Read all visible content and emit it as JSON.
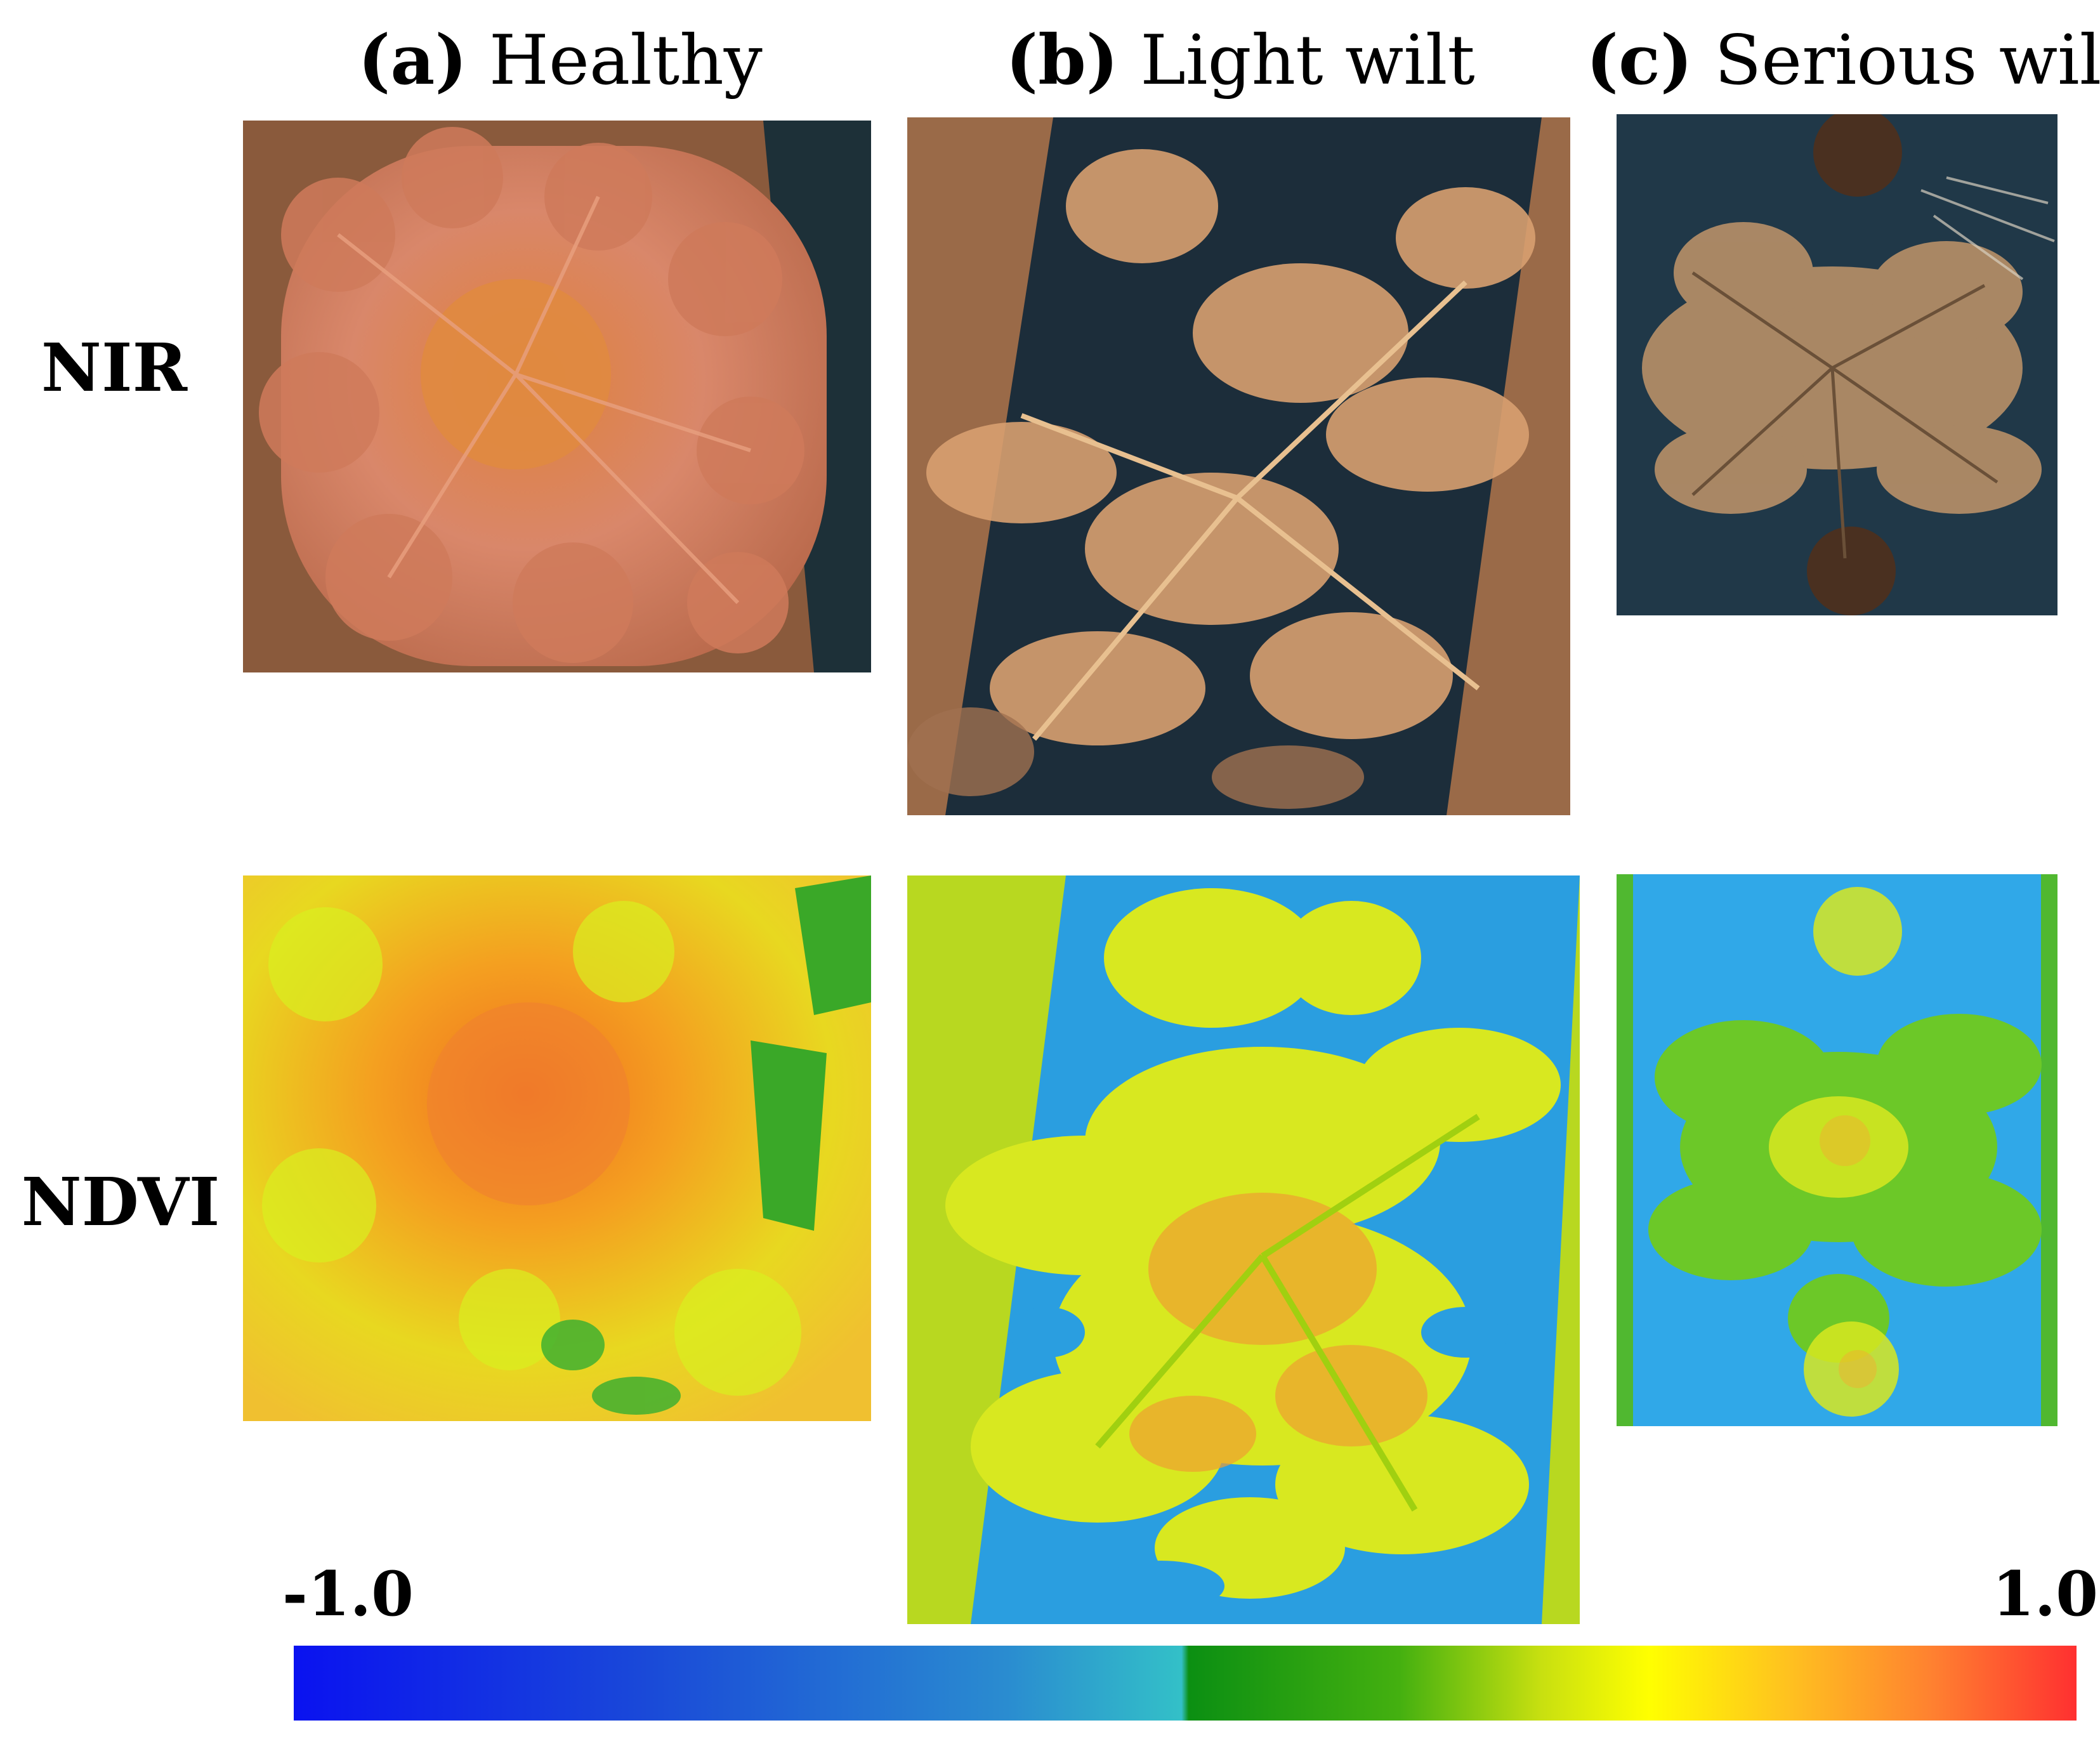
{
  "columns": [
    {
      "tag": "(a)",
      "label": "Healthy"
    },
    {
      "tag": "(b)",
      "label": "Light wilt"
    },
    {
      "tag": "(c)",
      "label": "Serious wilt"
    }
  ],
  "rows": {
    "nir": "NIR",
    "ndvi": "NDVI"
  },
  "colorbar": {
    "min_label": "-1.0",
    "max_label": "1.0",
    "colors": [
      "#0a12f0",
      "#33c0c8",
      "#0b8f12",
      "#ffff00",
      "#ff3030"
    ]
  }
}
